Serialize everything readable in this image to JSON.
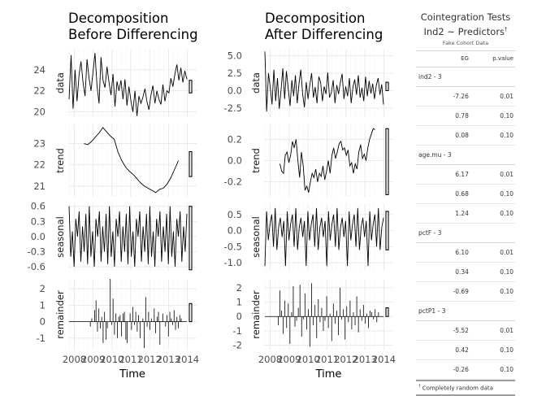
{
  "chart_data": [
    {
      "type": "line",
      "title": "Decomposition\nBefore Differencing",
      "xlabel": "Time",
      "x_ticks": [
        "2008",
        "2009",
        "2010",
        "2011",
        "2012",
        "2013",
        "2014"
      ],
      "xlim": [
        2007.5,
        2014.25
      ],
      "facets": [
        {
          "label": "data",
          "ylim": [
            19.5,
            26.0
          ],
          "y_ticks": [
            20,
            22,
            24
          ],
          "y": [
            21.2,
            25.4,
            20.3,
            24.0,
            21.0,
            23.5,
            24.8,
            22.8,
            21.5,
            25.0,
            23.2,
            22.0,
            23.8,
            25.6,
            22.5,
            20.8,
            25.2,
            23.0,
            22.3,
            24.3,
            22.8,
            21.6,
            23.6,
            20.5,
            22.9,
            22.0,
            23.0,
            21.2,
            23.1,
            20.6,
            22.4,
            21.0,
            20.0,
            22.0,
            19.6,
            21.5,
            20.8,
            21.4,
            22.2,
            21.0,
            20.2,
            21.6,
            22.5,
            20.8,
            22.0,
            21.2,
            20.7,
            22.6,
            21.0,
            22.0,
            21.8,
            23.2,
            22.4,
            23.6,
            24.5,
            23.0,
            24.2,
            22.8,
            23.9,
            23.1
          ],
          "bar": [
            21.8,
            23.0
          ]
        },
        {
          "label": "trend",
          "ylim": [
            20.5,
            23.9
          ],
          "y_ticks": [
            21,
            22,
            23
          ],
          "y": [
            23.0,
            22.95,
            23.1,
            23.3,
            23.5,
            23.75,
            23.55,
            23.35,
            23.2,
            22.6,
            22.2,
            21.9,
            21.7,
            21.55,
            21.35,
            21.15,
            21.0,
            20.9,
            20.8,
            20.7,
            20.85,
            20.9,
            21.1,
            21.4,
            21.8,
            22.2
          ],
          "bar": [
            21.45,
            22.62
          ]
        },
        {
          "label": "seasonal",
          "ylim": [
            -0.68,
            0.66
          ],
          "y_ticks": [
            -0.6,
            -0.3,
            0.0,
            0.3,
            0.6
          ],
          "y": [
            0.6,
            -0.4,
            0.1,
            -0.6,
            0.35,
            0.0,
            0.5,
            -0.5,
            0.2,
            -0.3,
            0.45,
            -0.55,
            0.6,
            -0.4,
            0.1,
            -0.6,
            0.35,
            0.0,
            0.5,
            -0.5,
            0.2,
            -0.3,
            0.45,
            -0.55,
            0.6,
            -0.4,
            0.1,
            -0.6,
            0.35,
            0.0,
            0.5,
            -0.5,
            0.2,
            -0.3,
            0.45,
            -0.55,
            0.6,
            -0.4,
            0.1,
            -0.6,
            0.35,
            0.0,
            0.5,
            -0.5,
            0.2,
            -0.3,
            0.45,
            -0.55,
            0.6,
            -0.4,
            0.1,
            -0.6,
            0.35,
            0.0,
            0.5,
            -0.5,
            0.2,
            -0.3,
            0.45,
            -0.55,
            0.6,
            -0.4,
            0.1,
            -0.6,
            0.35,
            0.0,
            0.5,
            -0.5,
            0.2,
            -0.3,
            0.45
          ],
          "bar": [
            -0.66,
            0.6
          ]
        },
        {
          "label": "remainder",
          "ylim": [
            -1.7,
            2.55
          ],
          "y_ticks": [
            -1,
            0,
            1,
            2
          ],
          "y": [
            0.0,
            0.0,
            0.0,
            0.0,
            0.0,
            0.0,
            0.0,
            0.0,
            0.0,
            0.0,
            0.0,
            0.0,
            0.0,
            0.0,
            0.0,
            -0.3,
            0.2,
            0.0,
            0.7,
            1.3,
            -0.6,
            0.8,
            -0.4,
            0.3,
            -1.3,
            0.6,
            -1.1,
            -0.4,
            0.0,
            2.6,
            -0.2,
            1.4,
            -0.8,
            0.5,
            -1.0,
            0.3,
            0.4,
            -0.9,
            0.5,
            0.6,
            -1.1,
            -1.3,
            0.0,
            0.5,
            -0.5,
            0.9,
            -0.2,
            0.6,
            -0.6,
            0.4,
            -1.0,
            0.0,
            0.2,
            -1.6,
            1.5,
            -0.3,
            0.6,
            -0.5,
            0.2,
            0.0,
            0.8,
            -0.7,
            0.3,
            0.6,
            -1.4,
            0.0,
            0.5,
            0.0,
            -0.3,
            0.4,
            -0.9,
            0.6,
            0.2,
            -0.2,
            0.7,
            -0.5,
            0.3,
            -0.4,
            0.4,
            0.2,
            0.0,
            0.0,
            0.0,
            0.0
          ],
          "bar": [
            0.0,
            1.1
          ]
        }
      ]
    },
    {
      "type": "line",
      "title": "Decomposition\nAfter Differencing",
      "xlabel": "Time",
      "x_ticks": [
        "2008",
        "2009",
        "2010",
        "2011",
        "2012",
        "2013",
        "2014"
      ],
      "xlim": [
        2007.5,
        2014.25
      ],
      "facets": [
        {
          "label": "data",
          "ylim": [
            -3.8,
            6.0
          ],
          "y_ticks": [
            -2.5,
            0.0,
            2.5,
            5.0
          ],
          "y": [
            5.6,
            -3.0,
            2.5,
            0.5,
            -2.0,
            3.0,
            -1.5,
            1.8,
            -2.6,
            0.0,
            3.2,
            -1.2,
            2.8,
            0.2,
            -2.2,
            1.5,
            -0.8,
            2.2,
            -1.8,
            1.0,
            3.0,
            -0.5,
            -2.4,
            1.2,
            -1.2,
            0.8,
            2.5,
            -1.0,
            0.5,
            -1.8,
            2.0,
            1.2,
            -1.5,
            0.6,
            -0.5,
            2.6,
            -1.0,
            -0.3,
            1.5,
            -1.8,
            0.8,
            -0.5,
            1.2,
            2.4,
            -1.2,
            0.6,
            -0.8,
            1.8,
            -1.8,
            0.5,
            1.6,
            -0.6,
            2.2,
            -1.0,
            0.4,
            -1.5,
            2.0,
            -0.8,
            1.4,
            -0.4,
            1.0,
            -1.2,
            0.8,
            1.8,
            -0.6,
            0.9,
            -2.0
          ],
          "bar": [
            0.0,
            1.2
          ]
        },
        {
          "label": "trend",
          "ylim": [
            -0.34,
            0.34
          ],
          "y_ticks": [
            -0.2,
            0.0,
            0.2
          ],
          "y": [
            -0.03,
            -0.1,
            -0.12,
            0.05,
            0.08,
            -0.02,
            0.05,
            0.18,
            0.12,
            0.2,
            0.0,
            -0.16,
            0.08,
            -0.05,
            -0.28,
            -0.24,
            -0.3,
            -0.2,
            -0.12,
            -0.16,
            -0.08,
            -0.2,
            -0.12,
            -0.15,
            -0.05,
            -0.18,
            -0.1,
            0.0,
            -0.12,
            0.05,
            0.12,
            0.02,
            0.08,
            0.16,
            0.18,
            0.1,
            0.12,
            0.05,
            0.1,
            -0.05,
            -0.02,
            -0.12,
            -0.03,
            -0.08,
            0.08,
            0.15,
            0.02,
            0.06,
            0.0,
            0.12,
            0.2,
            0.25,
            0.3,
            0.29
          ],
          "bar": [
            -0.32,
            0.3
          ]
        },
        {
          "label": "seasonal",
          "ylim": [
            -1.25,
            0.85
          ],
          "y_ticks": [
            -1.0,
            -0.5,
            0.0,
            0.5
          ],
          "y": [
            -1.1,
            0.6,
            -0.3,
            0.2,
            0.5,
            -0.5,
            0.7,
            -0.6,
            0.1,
            0.4,
            -0.2,
            0.3,
            -1.1,
            0.6,
            -0.3,
            0.2,
            0.5,
            -0.5,
            0.7,
            -0.6,
            0.1,
            0.4,
            -0.2,
            0.3,
            -1.1,
            0.6,
            -0.3,
            0.2,
            0.5,
            -0.5,
            0.7,
            -0.6,
            0.1,
            0.4,
            -0.2,
            0.3,
            -1.1,
            0.6,
            -0.3,
            0.2,
            0.5,
            -0.5,
            0.7,
            -0.6,
            0.1,
            0.4,
            -0.2,
            0.3,
            -1.1,
            0.6,
            -0.3,
            0.2,
            0.5,
            -0.5,
            0.7,
            -0.6,
            0.1,
            0.4,
            -0.2,
            0.3,
            -1.1,
            0.6,
            -0.3,
            0.2,
            0.5,
            -0.5,
            0.7,
            -0.6,
            0.1,
            0.4
          ],
          "bar": [
            -0.6,
            0.6
          ]
        },
        {
          "label": "remainder",
          "ylim": [
            -2.3,
            2.55
          ],
          "y_ticks": [
            -2,
            -1,
            0,
            1,
            2
          ],
          "y": [
            0.0,
            0.0,
            0.0,
            0.0,
            0.0,
            0.0,
            0.0,
            0.0,
            -0.6,
            1.8,
            0.4,
            -1.2,
            1.1,
            -0.8,
            0.9,
            -1.9,
            0.3,
            2.1,
            -0.7,
            -0.3,
            0.6,
            2.2,
            -1.4,
            -0.2,
            1.6,
            -0.9,
            0.5,
            -2.1,
            2.3,
            -0.6,
            0.8,
            -1.5,
            1.2,
            -0.4,
            0.6,
            -1.0,
            -0.3,
            1.4,
            -0.8,
            0.2,
            -1.7,
            0.9,
            -0.5,
            0.4,
            -1.3,
            2.0,
            -0.2,
            0.5,
            -1.6,
            0.7,
            -0.4,
            1.1,
            -0.9,
            0.3,
            -0.6,
            1.4,
            -1.1,
            0.5,
            -0.3,
            0.8,
            -0.5,
            0.2,
            -0.8,
            0.4,
            0.3,
            -0.2,
            0.5,
            -0.4,
            0.3,
            0.0,
            0.0,
            0.0
          ],
          "bar": [
            0.0,
            0.6
          ]
        }
      ]
    }
  ],
  "table": {
    "title": "Cointegration Tests",
    "subtitle_main": "Ind2 ~ Predictors",
    "subtitle_mark": "†",
    "source": "Fake Cohort Data",
    "col_eg": "EG",
    "col_p": "p.value",
    "groups": [
      {
        "label": "ind2 - 3",
        "rows": [
          {
            "eg": "-7.26",
            "p": "0.01"
          },
          {
            "eg": "0.78",
            "p": "0.10"
          },
          {
            "eg": "0.08",
            "p": "0.10"
          }
        ]
      },
      {
        "label": "age.mu - 3",
        "rows": [
          {
            "eg": "6.17",
            "p": "0.01"
          },
          {
            "eg": "0.68",
            "p": "0.10"
          },
          {
            "eg": "1.24",
            "p": "0.10"
          }
        ]
      },
      {
        "label": "pctF - 3",
        "rows": [
          {
            "eg": "6.10",
            "p": "0.01"
          },
          {
            "eg": "0.34",
            "p": "0.10"
          },
          {
            "eg": "-0.69",
            "p": "0.10"
          }
        ]
      },
      {
        "label": "pctP1 - 3",
        "rows": [
          {
            "eg": "-5.52",
            "p": "0.01"
          },
          {
            "eg": "0.42",
            "p": "0.10"
          },
          {
            "eg": "-0.26",
            "p": "0.10"
          }
        ]
      }
    ],
    "footnote_mark": "†",
    "footnote": "Completely random data"
  }
}
